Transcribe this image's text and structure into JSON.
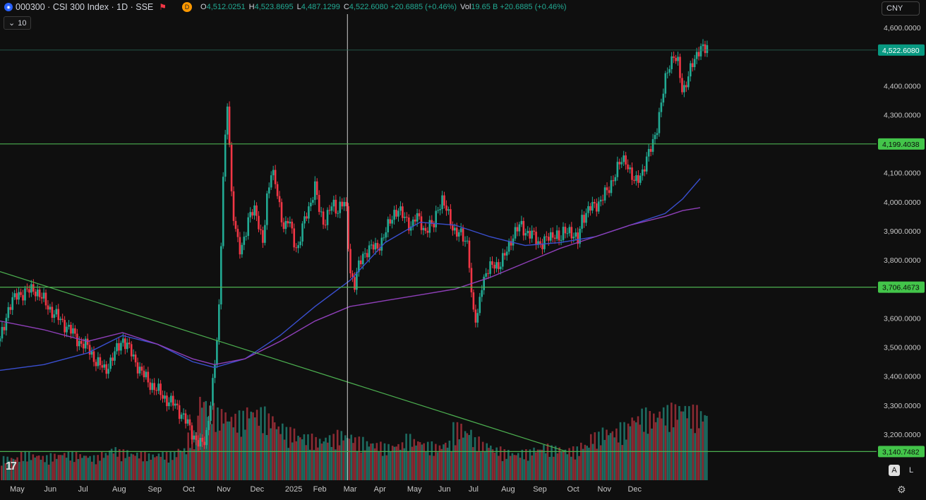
{
  "header": {
    "symbol_icon": "index-badge-icon",
    "title": "000300 · CSI 300 Index · 1D · SSE",
    "flag_icon": "flag-icon",
    "delayed_badge": "D",
    "ohlc": [
      {
        "k": "O",
        "v": "4,512.0251"
      },
      {
        "k": "H",
        "v": "4,523.8695"
      },
      {
        "k": "L",
        "v": "4,487.1299"
      },
      {
        "k": "C",
        "v": "4,522.6080 +20.6885 (+0.46%)"
      },
      {
        "k": "Vol",
        "v": "19.65 B +20.6885 (+0.46%)"
      }
    ]
  },
  "ma_tag": {
    "icon": "chevron-down-icon",
    "label": "10"
  },
  "currency": "CNY",
  "logo": "17",
  "scale_buttons": {
    "auto": "A",
    "log": "L"
  },
  "settings_icon": "gear-icon",
  "colors": {
    "up": "#22ab94",
    "down": "#f23645",
    "ma_fast": "#3a4fd0",
    "ma_slow": "#8e3fb8",
    "hline": "#4caf50",
    "trend": "#4caf50",
    "bg": "#0f0f0f",
    "grid": "#1e1e1e"
  },
  "chart_data": {
    "type": "candlestick",
    "y_ticks": [
      "4,600.0000",
      "4,400.0000",
      "4,300.0000",
      "4,200.0000",
      "4,100.0000",
      "4,000.0000",
      "3,900.0000",
      "3,800.0000",
      "3,700.0000",
      "3,600.0000",
      "3,500.0000",
      "3,400.0000",
      "3,300.0000",
      "3,200.0000"
    ],
    "y_tick_values": [
      4600,
      4400,
      4300,
      4200,
      4100,
      4000,
      3900,
      3800,
      3700,
      3600,
      3500,
      3400,
      3300,
      3200
    ],
    "ylim": [
      3100,
      4650
    ],
    "x_labels": [
      "May",
      "Jun",
      "Jul",
      "Aug",
      "Sep",
      "Oct",
      "Nov",
      "Dec",
      "2025",
      "Feb",
      "Mar",
      "Apr",
      "May",
      "Jun",
      "Jul",
      "Aug",
      "Sep",
      "Oct",
      "Nov",
      "Dec"
    ],
    "x_label_positions": [
      0.0,
      0.045,
      0.09,
      0.135,
      0.182,
      0.228,
      0.273,
      0.317,
      0.363,
      0.4,
      0.44,
      0.48,
      0.524,
      0.565,
      0.605,
      0.648,
      0.69,
      0.735,
      0.775,
      0.815
    ],
    "horizontal_lines": [
      {
        "value": 4522.608,
        "label": "4,522.6080",
        "style": "current"
      },
      {
        "value": 4199.4038,
        "label": "4,199.4038",
        "style": "level"
      },
      {
        "value": 3706.4673,
        "label": "3,706.4673",
        "style": "level"
      },
      {
        "value": 3140.7482,
        "label": "3,140.7482",
        "style": "level"
      }
    ],
    "trendline": {
      "from": [
        0.0,
        3760
      ],
      "to": [
        0.648,
        3140
      ]
    },
    "crosshair_x": 0.397,
    "close_path": [
      [
        0.0,
        3520
      ],
      [
        0.01,
        3640
      ],
      [
        0.02,
        3680
      ],
      [
        0.03,
        3690
      ],
      [
        0.04,
        3700
      ],
      [
        0.05,
        3660
      ],
      [
        0.06,
        3620
      ],
      [
        0.07,
        3590
      ],
      [
        0.08,
        3560
      ],
      [
        0.09,
        3520
      ],
      [
        0.1,
        3500
      ],
      [
        0.11,
        3450
      ],
      [
        0.12,
        3420
      ],
      [
        0.13,
        3470
      ],
      [
        0.14,
        3530
      ],
      [
        0.15,
        3480
      ],
      [
        0.16,
        3420
      ],
      [
        0.17,
        3380
      ],
      [
        0.18,
        3350
      ],
      [
        0.19,
        3320
      ],
      [
        0.2,
        3300
      ],
      [
        0.21,
        3260
      ],
      [
        0.22,
        3200
      ],
      [
        0.23,
        3160
      ],
      [
        0.235,
        3180
      ],
      [
        0.24,
        3300
      ],
      [
        0.245,
        3420
      ],
      [
        0.25,
        3600
      ],
      [
        0.255,
        4100
      ],
      [
        0.26,
        4350
      ],
      [
        0.265,
        3980
      ],
      [
        0.27,
        3900
      ],
      [
        0.275,
        3830
      ],
      [
        0.28,
        3870
      ],
      [
        0.285,
        3960
      ],
      [
        0.29,
        3990
      ],
      [
        0.295,
        3920
      ],
      [
        0.3,
        3850
      ],
      [
        0.305,
        4020
      ],
      [
        0.31,
        4100
      ],
      [
        0.315,
        4060
      ],
      [
        0.32,
        3980
      ],
      [
        0.325,
        3900
      ],
      [
        0.33,
        3940
      ],
      [
        0.335,
        3880
      ],
      [
        0.34,
        3830
      ],
      [
        0.345,
        3900
      ],
      [
        0.35,
        3960
      ],
      [
        0.355,
        4000
      ],
      [
        0.36,
        4050
      ],
      [
        0.365,
        3970
      ],
      [
        0.37,
        3930
      ],
      [
        0.375,
        3960
      ],
      [
        0.38,
        3990
      ],
      [
        0.385,
        3970
      ],
      [
        0.39,
        4000
      ],
      [
        0.395,
        3990
      ],
      [
        0.4,
        3760
      ],
      [
        0.405,
        3720
      ],
      [
        0.41,
        3780
      ],
      [
        0.415,
        3810
      ],
      [
        0.42,
        3840
      ],
      [
        0.425,
        3850
      ],
      [
        0.43,
        3830
      ],
      [
        0.435,
        3860
      ],
      [
        0.44,
        3900
      ],
      [
        0.445,
        3920
      ],
      [
        0.45,
        3960
      ],
      [
        0.455,
        3980
      ],
      [
        0.46,
        3950
      ],
      [
        0.465,
        3930
      ],
      [
        0.47,
        3920
      ],
      [
        0.475,
        3950
      ],
      [
        0.48,
        3930
      ],
      [
        0.485,
        3900
      ],
      [
        0.49,
        3920
      ],
      [
        0.495,
        3910
      ],
      [
        0.5,
        3980
      ],
      [
        0.505,
        4010
      ],
      [
        0.51,
        3970
      ],
      [
        0.515,
        3930
      ],
      [
        0.52,
        3900
      ],
      [
        0.525,
        3890
      ],
      [
        0.53,
        3870
      ],
      [
        0.535,
        3860
      ],
      [
        0.54,
        3620
      ],
      [
        0.545,
        3580
      ],
      [
        0.55,
        3720
      ],
      [
        0.555,
        3750
      ],
      [
        0.56,
        3770
      ],
      [
        0.565,
        3790
      ],
      [
        0.57,
        3780
      ],
      [
        0.575,
        3800
      ],
      [
        0.58,
        3840
      ],
      [
        0.585,
        3880
      ],
      [
        0.59,
        3900
      ],
      [
        0.595,
        3920
      ],
      [
        0.6,
        3900
      ],
      [
        0.605,
        3890
      ],
      [
        0.61,
        3880
      ],
      [
        0.615,
        3860
      ],
      [
        0.62,
        3860
      ],
      [
        0.625,
        3870
      ],
      [
        0.63,
        3880
      ],
      [
        0.635,
        3900
      ],
      [
        0.64,
        3860
      ],
      [
        0.645,
        3900
      ],
      [
        0.65,
        3910
      ],
      [
        0.655,
        3880
      ],
      [
        0.66,
        3860
      ],
      [
        0.665,
        3950
      ],
      [
        0.67,
        3960
      ],
      [
        0.675,
        3980
      ],
      [
        0.68,
        3990
      ],
      [
        0.685,
        4000
      ],
      [
        0.69,
        4020
      ],
      [
        0.695,
        4040
      ],
      [
        0.7,
        4080
      ],
      [
        0.705,
        4110
      ],
      [
        0.71,
        4140
      ],
      [
        0.715,
        4150
      ],
      [
        0.72,
        4100
      ],
      [
        0.725,
        4060
      ],
      [
        0.73,
        4090
      ],
      [
        0.735,
        4110
      ],
      [
        0.74,
        4150
      ],
      [
        0.745,
        4200
      ],
      [
        0.75,
        4250
      ],
      [
        0.755,
        4320
      ],
      [
        0.76,
        4420
      ],
      [
        0.765,
        4480
      ],
      [
        0.77,
        4500
      ],
      [
        0.775,
        4470
      ],
      [
        0.78,
        4380
      ],
      [
        0.785,
        4420
      ],
      [
        0.79,
        4460
      ],
      [
        0.795,
        4500
      ],
      [
        0.8,
        4540
      ],
      [
        0.805,
        4520
      ],
      [
        0.808,
        4522.6
      ]
    ],
    "ma_fast": [
      [
        0.0,
        3420
      ],
      [
        0.05,
        3440
      ],
      [
        0.1,
        3480
      ],
      [
        0.14,
        3540
      ],
      [
        0.18,
        3510
      ],
      [
        0.22,
        3450
      ],
      [
        0.245,
        3430
      ],
      [
        0.28,
        3460
      ],
      [
        0.32,
        3540
      ],
      [
        0.36,
        3640
      ],
      [
        0.4,
        3730
      ],
      [
        0.44,
        3860
      ],
      [
        0.48,
        3930
      ],
      [
        0.52,
        3920
      ],
      [
        0.56,
        3880
      ],
      [
        0.6,
        3850
      ],
      [
        0.64,
        3860
      ],
      [
        0.68,
        3880
      ],
      [
        0.72,
        3920
      ],
      [
        0.76,
        3960
      ],
      [
        0.78,
        4010
      ],
      [
        0.8,
        4080
      ]
    ],
    "ma_slow": [
      [
        0.0,
        3590
      ],
      [
        0.05,
        3560
      ],
      [
        0.1,
        3520
      ],
      [
        0.14,
        3550
      ],
      [
        0.18,
        3510
      ],
      [
        0.22,
        3460
      ],
      [
        0.245,
        3440
      ],
      [
        0.28,
        3460
      ],
      [
        0.32,
        3520
      ],
      [
        0.36,
        3590
      ],
      [
        0.4,
        3640
      ],
      [
        0.44,
        3660
      ],
      [
        0.48,
        3680
      ],
      [
        0.52,
        3700
      ],
      [
        0.56,
        3740
      ],
      [
        0.6,
        3790
      ],
      [
        0.64,
        3840
      ],
      [
        0.68,
        3880
      ],
      [
        0.72,
        3920
      ],
      [
        0.76,
        3950
      ],
      [
        0.78,
        3970
      ],
      [
        0.8,
        3980
      ]
    ],
    "volume_profile": [
      0.25,
      0.25,
      0.3,
      0.28,
      0.26,
      0.28,
      0.3,
      0.3,
      0.28,
      0.26,
      0.3,
      0.35,
      0.32,
      0.3,
      0.3,
      0.28,
      0.3,
      0.3,
      0.35,
      0.5,
      0.9,
      0.8,
      0.75,
      0.7,
      0.72,
      0.78,
      0.76,
      0.7,
      0.6,
      0.55,
      0.5,
      0.48,
      0.45,
      0.48,
      0.52,
      0.5,
      0.45,
      0.42,
      0.4,
      0.38,
      0.4,
      0.48,
      0.44,
      0.4,
      0.38,
      0.42,
      0.6,
      0.55,
      0.45,
      0.4,
      0.35,
      0.32,
      0.3,
      0.32,
      0.35,
      0.38,
      0.36,
      0.34,
      0.35,
      0.4,
      0.5,
      0.55,
      0.55,
      0.6,
      0.7,
      0.75,
      0.72,
      0.78,
      0.8,
      0.82,
      0.78,
      0.74
    ]
  }
}
